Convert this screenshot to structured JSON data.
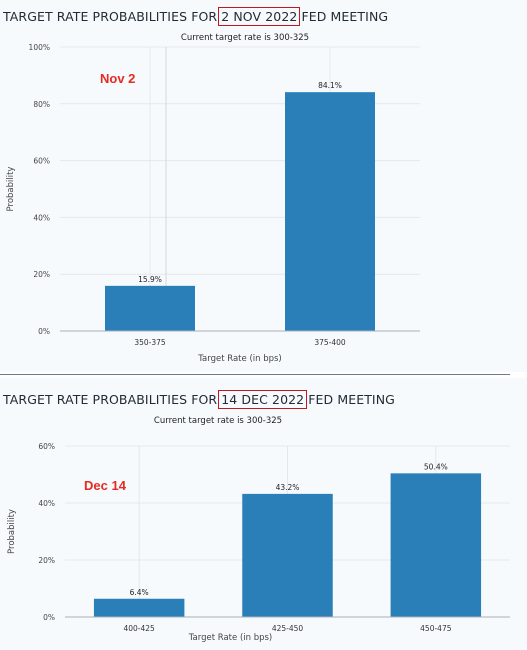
{
  "chart_data": [
    {
      "type": "bar",
      "heading_prefix": "TARGET RATE PROBABILITIES FOR",
      "heading_date": "2 NOV 2022",
      "heading_suffix": "FED MEETING",
      "subtitle": "Current target rate is 300-325",
      "annotation": "Nov 2",
      "categories": [
        "350-375",
        "375-400"
      ],
      "values": [
        15.9,
        84.1
      ],
      "value_labels": [
        "15.9%",
        "84.1%"
      ],
      "xlabel": "Target Rate (in bps)",
      "ylabel": "Probability",
      "ylim": [
        0,
        100
      ],
      "yticks": [
        0,
        20,
        40,
        60,
        80,
        100
      ],
      "ytick_labels": [
        "0%",
        "20%",
        "40%",
        "60%",
        "80%",
        "100%"
      ],
      "bar_color": "#2a7fb8",
      "grid": true
    },
    {
      "type": "bar",
      "heading_prefix": "TARGET RATE PROBABILITIES FOR",
      "heading_date": "14 DEC 2022",
      "heading_suffix": "FED MEETING",
      "subtitle": "Current target rate is 300-325",
      "annotation": "Dec 14",
      "categories": [
        "400-425",
        "425-450",
        "450-475"
      ],
      "values": [
        6.4,
        43.2,
        50.4
      ],
      "value_labels": [
        "6.4%",
        "43.2%",
        "50.4%"
      ],
      "xlabel": "Target Rate (in bps)",
      "ylabel": "Probability",
      "ylim": [
        0,
        60
      ],
      "yticks": [
        0,
        20,
        40,
        60
      ],
      "ytick_labels": [
        "0%",
        "20%",
        "40%",
        "60%"
      ],
      "bar_color": "#2a7fb8",
      "grid": true
    }
  ]
}
